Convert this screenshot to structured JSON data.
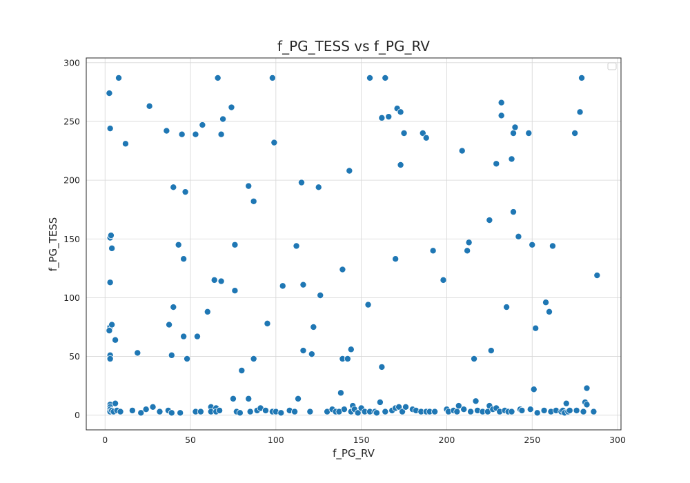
{
  "chart_data": {
    "type": "scatter",
    "title": "f_PG_TESS vs f_PG_RV",
    "xlabel": "f_PG_RV",
    "ylabel": "f_PG_TESS",
    "xlim": [
      -11,
      302
    ],
    "ylim": [
      -12.5,
      304
    ],
    "xticks": [
      0,
      50,
      100,
      150,
      200,
      250,
      300
    ],
    "yticks": [
      0,
      50,
      100,
      150,
      200,
      250,
      300
    ],
    "grid": true,
    "legend": {
      "placement": "top-right",
      "entries": []
    },
    "color": "#1f77b4",
    "points": [
      [
        2.5,
        274
      ],
      [
        3,
        244
      ],
      [
        3,
        151
      ],
      [
        3.5,
        153
      ],
      [
        4,
        142
      ],
      [
        3,
        113
      ],
      [
        3,
        75
      ],
      [
        2.5,
        72
      ],
      [
        4,
        77
      ],
      [
        3,
        51
      ],
      [
        3,
        48
      ],
      [
        6,
        64
      ],
      [
        3,
        9
      ],
      [
        3,
        7
      ],
      [
        3,
        5
      ],
      [
        3,
        3
      ],
      [
        4,
        4
      ],
      [
        5,
        3
      ],
      [
        6,
        10
      ],
      [
        7,
        4
      ],
      [
        8,
        287
      ],
      [
        9,
        3
      ],
      [
        12,
        231
      ],
      [
        16,
        4
      ],
      [
        19,
        53
      ],
      [
        21,
        2
      ],
      [
        24,
        5
      ],
      [
        26,
        263
      ],
      [
        28,
        7
      ],
      [
        32,
        3
      ],
      [
        36,
        242
      ],
      [
        37,
        4
      ],
      [
        37.5,
        77
      ],
      [
        39,
        51
      ],
      [
        40,
        92
      ],
      [
        40,
        194
      ],
      [
        39,
        2
      ],
      [
        43,
        145
      ],
      [
        44,
        2
      ],
      [
        45,
        239
      ],
      [
        46,
        133
      ],
      [
        46,
        67
      ],
      [
        47,
        190
      ],
      [
        48,
        48
      ],
      [
        53,
        239
      ],
      [
        53,
        3
      ],
      [
        54,
        67
      ],
      [
        56,
        3
      ],
      [
        57,
        247
      ],
      [
        60,
        88
      ],
      [
        62,
        7
      ],
      [
        62,
        3
      ],
      [
        64,
        115
      ],
      [
        65,
        6
      ],
      [
        65,
        3
      ],
      [
        66,
        287
      ],
      [
        67,
        4
      ],
      [
        68,
        239
      ],
      [
        68,
        114
      ],
      [
        69,
        252
      ],
      [
        74,
        262
      ],
      [
        75,
        14
      ],
      [
        76,
        106
      ],
      [
        76,
        145
      ],
      [
        77,
        3
      ],
      [
        79,
        2
      ],
      [
        80,
        38
      ],
      [
        84,
        195
      ],
      [
        84,
        14
      ],
      [
        85,
        3
      ],
      [
        87,
        182
      ],
      [
        87,
        48
      ],
      [
        89,
        4
      ],
      [
        91,
        6
      ],
      [
        94,
        4
      ],
      [
        95,
        78
      ],
      [
        98,
        3
      ],
      [
        98,
        287
      ],
      [
        99,
        232
      ],
      [
        100,
        3
      ],
      [
        103,
        2
      ],
      [
        104,
        110
      ],
      [
        108,
        4
      ],
      [
        111,
        3
      ],
      [
        112,
        144
      ],
      [
        113,
        14
      ],
      [
        115,
        198
      ],
      [
        116,
        111
      ],
      [
        116,
        55
      ],
      [
        120,
        3
      ],
      [
        121,
        52
      ],
      [
        122,
        75
      ],
      [
        125,
        194
      ],
      [
        126,
        102
      ],
      [
        130,
        3
      ],
      [
        133,
        5
      ],
      [
        135,
        3
      ],
      [
        137,
        3
      ],
      [
        138,
        19
      ],
      [
        139,
        48
      ],
      [
        139,
        124
      ],
      [
        140,
        5
      ],
      [
        142,
        48
      ],
      [
        143,
        208
      ],
      [
        144,
        3
      ],
      [
        144,
        56
      ],
      [
        145,
        8
      ],
      [
        146,
        5
      ],
      [
        148,
        2
      ],
      [
        150,
        6
      ],
      [
        152,
        3
      ],
      [
        154,
        94
      ],
      [
        155,
        3
      ],
      [
        155,
        287
      ],
      [
        158,
        3
      ],
      [
        159,
        2
      ],
      [
        161,
        11
      ],
      [
        162,
        41
      ],
      [
        162,
        253
      ],
      [
        164,
        287
      ],
      [
        164,
        3
      ],
      [
        166,
        254
      ],
      [
        168,
        4
      ],
      [
        170,
        6
      ],
      [
        170,
        133
      ],
      [
        171,
        261
      ],
      [
        172,
        7
      ],
      [
        173,
        258
      ],
      [
        173,
        213
      ],
      [
        174,
        3
      ],
      [
        175,
        240
      ],
      [
        176,
        7
      ],
      [
        180,
        5
      ],
      [
        182,
        4
      ],
      [
        185,
        3
      ],
      [
        186,
        240
      ],
      [
        188,
        236
      ],
      [
        188,
        3
      ],
      [
        190,
        3
      ],
      [
        192,
        140
      ],
      [
        193,
        3
      ],
      [
        198,
        115
      ],
      [
        200,
        5
      ],
      [
        201,
        3
      ],
      [
        204,
        4
      ],
      [
        206,
        3
      ],
      [
        207,
        8
      ],
      [
        209,
        225
      ],
      [
        210,
        5
      ],
      [
        212,
        140
      ],
      [
        213,
        147
      ],
      [
        214,
        3
      ],
      [
        216,
        48
      ],
      [
        217,
        12
      ],
      [
        218,
        4
      ],
      [
        221,
        3
      ],
      [
        224,
        3
      ],
      [
        225,
        8
      ],
      [
        225,
        166
      ],
      [
        226,
        55
      ],
      [
        227,
        5
      ],
      [
        229,
        6
      ],
      [
        229,
        214
      ],
      [
        231,
        3
      ],
      [
        232,
        266
      ],
      [
        232,
        255
      ],
      [
        234,
        4
      ],
      [
        235,
        92
      ],
      [
        236,
        3
      ],
      [
        238,
        3
      ],
      [
        238,
        218
      ],
      [
        239,
        173
      ],
      [
        239,
        240
      ],
      [
        240,
        245
      ],
      [
        242,
        152
      ],
      [
        243,
        5
      ],
      [
        244,
        4
      ],
      [
        248,
        240
      ],
      [
        249,
        5
      ],
      [
        250,
        145
      ],
      [
        251,
        22
      ],
      [
        252,
        74
      ],
      [
        253,
        2
      ],
      [
        257,
        4
      ],
      [
        258,
        96
      ],
      [
        260,
        88
      ],
      [
        261,
        3
      ],
      [
        262,
        144
      ],
      [
        264,
        4
      ],
      [
        267,
        3
      ],
      [
        268,
        4
      ],
      [
        269,
        2
      ],
      [
        270,
        10
      ],
      [
        271,
        3
      ],
      [
        272,
        4
      ],
      [
        275,
        240
      ],
      [
        276,
        4
      ],
      [
        278,
        258
      ],
      [
        279,
        287
      ],
      [
        281,
        11
      ],
      [
        282,
        23
      ],
      [
        282,
        9
      ],
      [
        280,
        3
      ],
      [
        286,
        3
      ],
      [
        288,
        119
      ]
    ]
  }
}
